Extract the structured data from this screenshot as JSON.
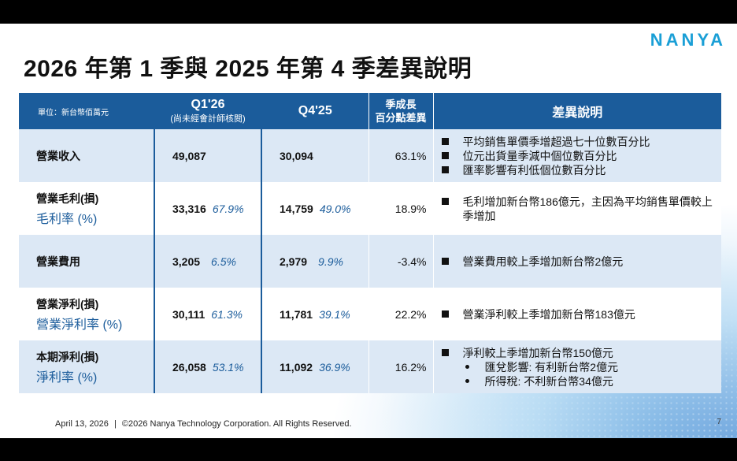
{
  "slide": {
    "title": "2026 年第 1 季與 2025 年第 4 季差異說明",
    "logo": "NANYA",
    "page_number": "7"
  },
  "table": {
    "header": {
      "unit": "單位：新台幣佰萬元",
      "q1_main": "Q1'26",
      "q1_sub": "(尚未經會計師核閱)",
      "q4": "Q4'25",
      "growth_line1": "季成長",
      "growth_line2": "百分點差異",
      "explanation": "差異說明"
    },
    "rows": [
      {
        "label": "營業收入",
        "ratio_label": "",
        "q1_value": "49,087",
        "q1_pct": "",
        "q4_value": "30,094",
        "q4_pct": "",
        "growth": "63.1%",
        "bullets": [
          "平均銷售單價季增超過七十位數百分比",
          "位元出貨量季減中個位數百分比",
          "匯率影響有利低個位數百分比"
        ],
        "sub_bullets": []
      },
      {
        "label": "營業毛利(損)",
        "ratio_label": "毛利率 (%)",
        "q1_value": "33,316",
        "q1_pct": "67.9%",
        "q4_value": "14,759",
        "q4_pct": "49.0%",
        "growth": "18.9%",
        "bullets": [
          "毛利增加新台幣186億元，主因為平均銷售單價較上季增加"
        ],
        "sub_bullets": []
      },
      {
        "label": "營業費用",
        "ratio_label": "",
        "q1_value": "3,205",
        "q1_pct": "6.5%",
        "q4_value": "2,979",
        "q4_pct": "9.9%",
        "growth": "-3.4%",
        "bullets": [
          "營業費用較上季增加新台幣2億元"
        ],
        "sub_bullets": []
      },
      {
        "label": "營業淨利(損)",
        "ratio_label": "營業淨利率 (%)",
        "q1_value": "30,111",
        "q1_pct": "61.3%",
        "q4_value": "11,781",
        "q4_pct": "39.1%",
        "growth": "22.2%",
        "bullets": [
          "營業淨利較上季增加新台幣183億元"
        ],
        "sub_bullets": []
      },
      {
        "label": "本期淨利(損)",
        "ratio_label": "淨利率 (%)",
        "q1_value": "26,058",
        "q1_pct": "53.1%",
        "q4_value": "11,092",
        "q4_pct": "36.9%",
        "growth": "16.2%",
        "bullets": [
          "淨利較上季增加新台幣150億元"
        ],
        "sub_bullets": [
          "匯兌影響: 有利新台幣2億元",
          "所得稅: 不利新台幣34億元"
        ]
      }
    ]
  },
  "footer": {
    "date": "April 13, 2026",
    "separator": "|",
    "copyright": "©2026 Nanya Technology Corporation. All Rights Reserved."
  }
}
